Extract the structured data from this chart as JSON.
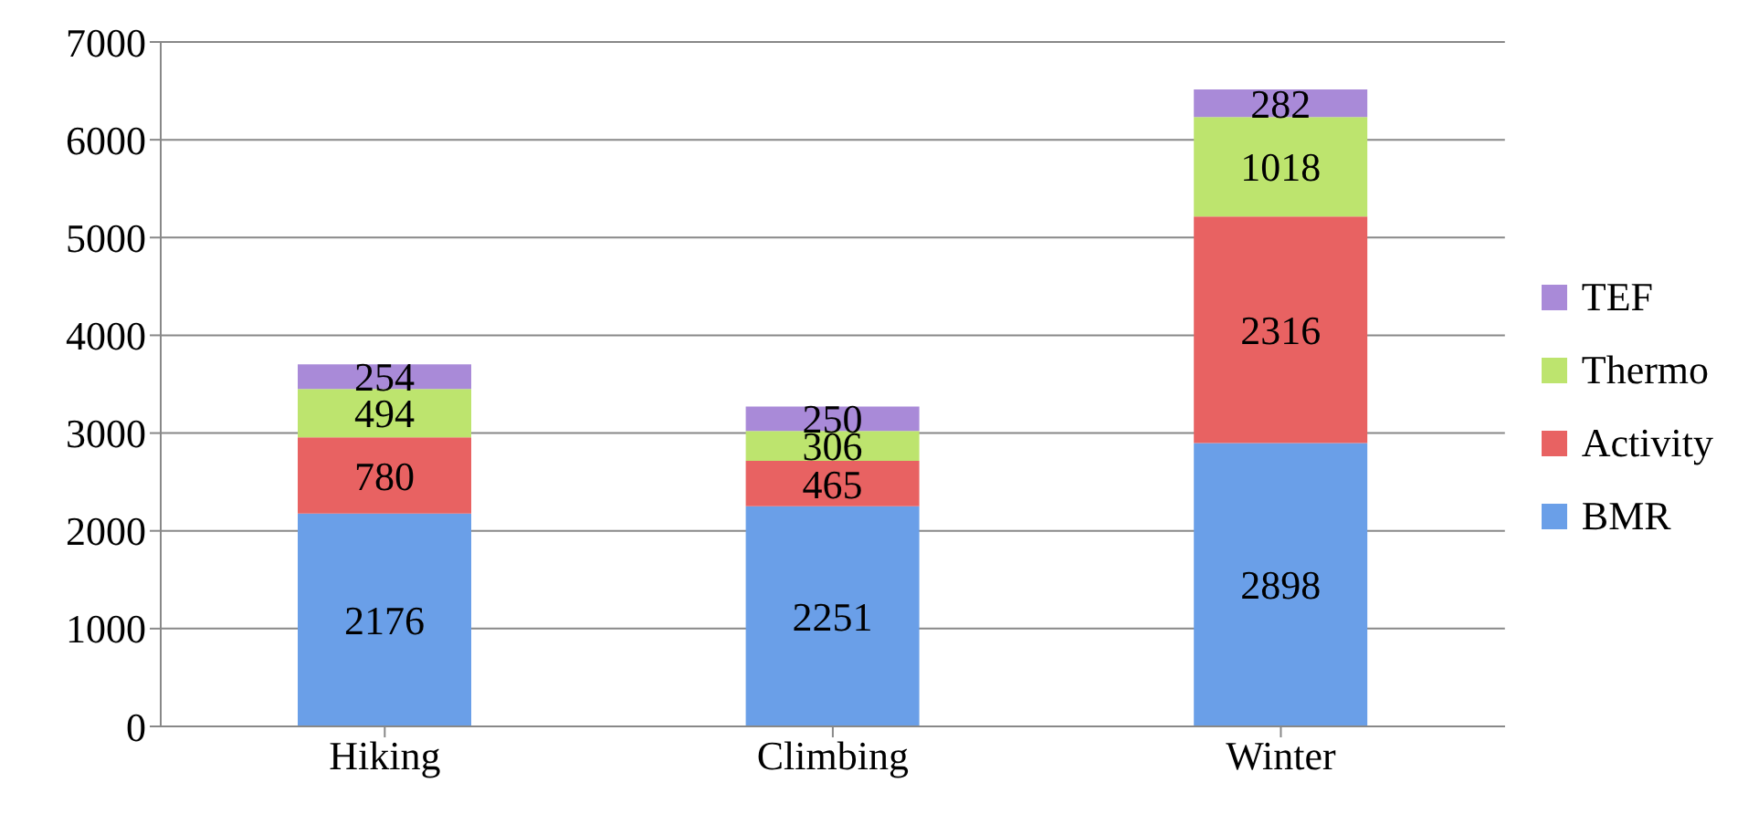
{
  "chart_data": {
    "type": "bar",
    "stacked": true,
    "categories": [
      "Hiking",
      "Climbing",
      "Winter"
    ],
    "series": [
      {
        "name": "BMR",
        "color": "#6a9fe8",
        "values": [
          2176,
          2251,
          2898
        ]
      },
      {
        "name": "Activity",
        "color": "#e86262",
        "values": [
          780,
          465,
          2316
        ]
      },
      {
        "name": "Thermo",
        "color": "#bde46e",
        "values": [
          494,
          306,
          1018
        ]
      },
      {
        "name": "TEF",
        "color": "#a98ad8",
        "values": [
          254,
          250,
          282
        ]
      }
    ],
    "ylim": [
      0,
      7000
    ],
    "yticks": [
      0,
      1000,
      2000,
      3000,
      4000,
      5000,
      6000,
      7000
    ],
    "grid": "y",
    "legend": "right",
    "data_labels": true
  }
}
